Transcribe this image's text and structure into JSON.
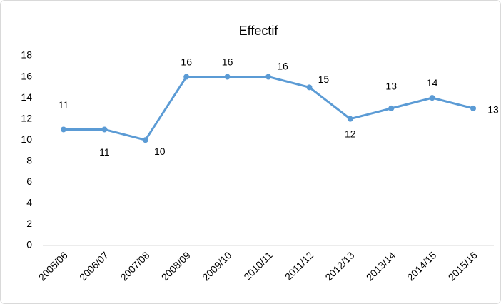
{
  "chart_data": {
    "type": "line",
    "title": "Effectif",
    "categories": [
      "2005/06",
      "2006/07",
      "2007/08",
      "2008/09",
      "2009/10",
      "2010/11",
      "2011/12",
      "2012/13",
      "2013/14",
      "2014/15",
      "2015/16"
    ],
    "values": [
      11,
      11,
      10,
      16,
      16,
      16,
      15,
      12,
      13,
      14,
      13
    ],
    "color": "#5b9bd5",
    "ylim": [
      0,
      18
    ],
    "yticks": [
      0,
      2,
      4,
      6,
      8,
      10,
      12,
      14,
      16,
      18
    ],
    "grid": false
  }
}
